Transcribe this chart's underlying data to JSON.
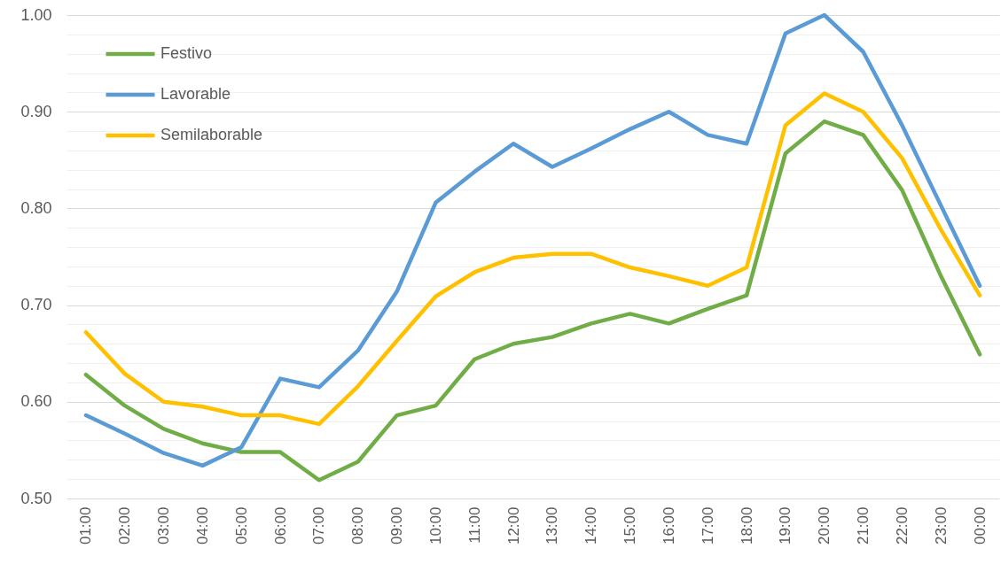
{
  "chart_data": {
    "type": "line",
    "categories": [
      "01:00",
      "02:00",
      "03:00",
      "04:00",
      "05:00",
      "06:00",
      "07:00",
      "08:00",
      "09:00",
      "10:00",
      "11:00",
      "12:00",
      "13:00",
      "14:00",
      "15:00",
      "16:00",
      "17:00",
      "18:00",
      "19:00",
      "20:00",
      "21:00",
      "22:00",
      "23:00",
      "00:00"
    ],
    "series": [
      {
        "name": "Festivo",
        "color": "#70ad47",
        "values": [
          0.628,
          0.596,
          0.572,
          0.557,
          0.548,
          0.548,
          0.519,
          0.538,
          0.586,
          0.596,
          0.644,
          0.66,
          0.667,
          0.681,
          0.691,
          0.681,
          0.696,
          0.71,
          0.857,
          0.89,
          0.876,
          0.819,
          0.73,
          0.649
        ]
      },
      {
        "name": "Lavorable",
        "color": "#5b9bd5",
        "values": [
          0.586,
          0.567,
          0.547,
          0.534,
          0.553,
          0.624,
          0.615,
          0.653,
          0.714,
          0.806,
          0.838,
          0.867,
          0.843,
          0.862,
          0.882,
          0.9,
          0.876,
          0.867,
          0.981,
          1.0,
          0.962,
          0.886,
          0.803,
          0.72
        ]
      },
      {
        "name": "Semilaborable",
        "color": "#ffc000",
        "values": [
          0.672,
          0.629,
          0.6,
          0.595,
          0.586,
          0.586,
          0.577,
          0.616,
          0.663,
          0.709,
          0.734,
          0.749,
          0.753,
          0.753,
          0.739,
          0.73,
          0.72,
          0.739,
          0.886,
          0.919,
          0.9,
          0.852,
          0.778,
          0.71
        ]
      }
    ],
    "ylim": [
      0.5,
      1.0
    ],
    "yticks": [
      {
        "value": 0.5,
        "label": "0.50"
      },
      {
        "value": 0.52,
        "label": null
      },
      {
        "value": 0.54,
        "label": null
      },
      {
        "value": 0.56,
        "label": null
      },
      {
        "value": 0.58,
        "label": null
      },
      {
        "value": 0.6,
        "label": "0.60"
      },
      {
        "value": 0.62,
        "label": null
      },
      {
        "value": 0.64,
        "label": null
      },
      {
        "value": 0.66,
        "label": null
      },
      {
        "value": 0.68,
        "label": null
      },
      {
        "value": 0.7,
        "label": "0.70"
      },
      {
        "value": 0.72,
        "label": null
      },
      {
        "value": 0.74,
        "label": null
      },
      {
        "value": 0.76,
        "label": null
      },
      {
        "value": 0.78,
        "label": null
      },
      {
        "value": 0.8,
        "label": "0.80"
      },
      {
        "value": 0.82,
        "label": null
      },
      {
        "value": 0.84,
        "label": null
      },
      {
        "value": 0.86,
        "label": null
      },
      {
        "value": 0.88,
        "label": null
      },
      {
        "value": 0.9,
        "label": "0.90"
      },
      {
        "value": 0.92,
        "label": null
      },
      {
        "value": 0.94,
        "label": null
      },
      {
        "value": 0.96,
        "label": null
      },
      {
        "value": 0.98,
        "label": null
      },
      {
        "value": 1.0,
        "label": "1.00"
      }
    ],
    "grid": "y",
    "legend": "top left",
    "marker": "none",
    "line_style": "solid"
  }
}
